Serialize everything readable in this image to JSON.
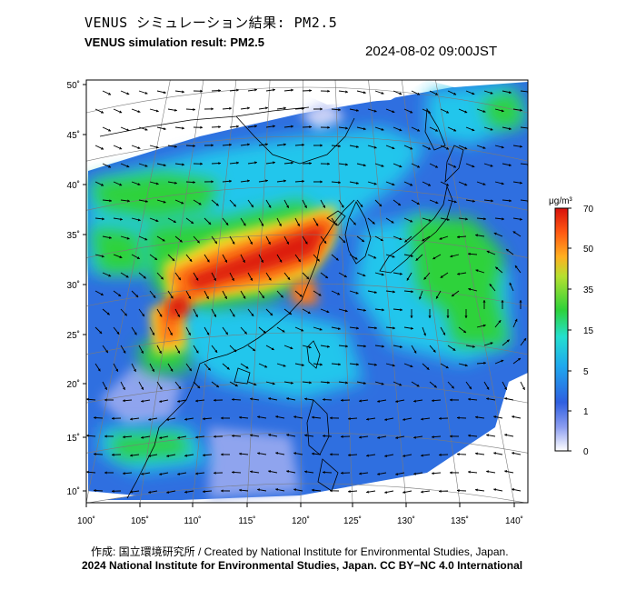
{
  "header": {
    "title_jp": "VENUS シミュレーション結果: PM2.5",
    "title_en": "VENUS simulation result: PM2.5",
    "timestamp": "2024-08-02 09:00JST"
  },
  "map": {
    "lat_labels": [
      "50˚",
      "45˚",
      "40˚",
      "35˚",
      "30˚",
      "25˚",
      "20˚",
      "15˚",
      "10˚"
    ],
    "lon_labels": [
      "100˚",
      "105˚",
      "110˚",
      "115˚",
      "120˚",
      "125˚",
      "130˚",
      "135˚",
      "140˚"
    ],
    "colors": {
      "low": "#e6e6ff",
      "blue": "#2f6fe0",
      "cyan": "#26d2e8",
      "green": "#2dd23a",
      "yellow": "#f2e02a",
      "orange": "#ff7a12",
      "red": "#dd1a0f"
    }
  },
  "colorbar": {
    "unit": "μg/m³",
    "tick_labels": [
      "70",
      "50",
      "35",
      "15",
      "5",
      "1",
      "0"
    ]
  },
  "footer": {
    "credit": "作成: 国立環境研究所 / Created by National Institute for Environmental Studies, Japan.",
    "copyright": "2024 National Institute for Environmental Studies, Japan. CC BY−NC 4.0 International"
  }
}
